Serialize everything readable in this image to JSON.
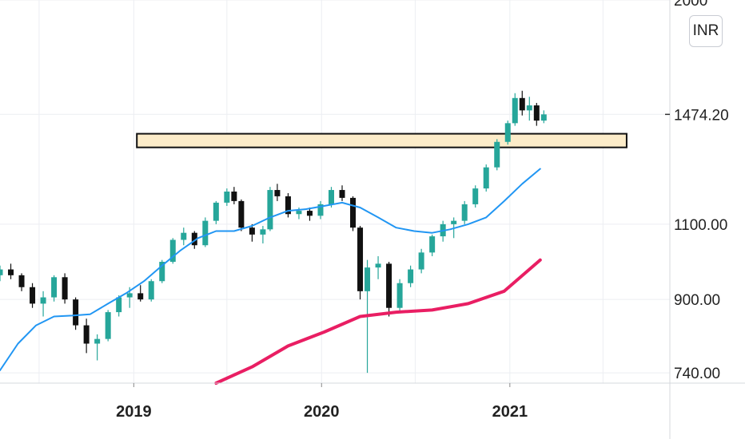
{
  "chart_data": {
    "type": "candlestick",
    "currency": "INR",
    "y_scale": "log",
    "ylim": [
      720,
      2000
    ],
    "y_ticks": [
      "740.00",
      "900.00",
      "1100.00",
      "2000"
    ],
    "last_price_label": "1474.20",
    "x_ticks": [
      "2019",
      "2020",
      "2021"
    ],
    "x_tick_values": [
      "2019-01-01",
      "2020-01-01",
      "2021-01-01"
    ],
    "xlim": [
      "2018-04-16",
      "2021-11-08"
    ],
    "grid": true,
    "colors": {
      "up": "#26a69a",
      "down": "#111111",
      "ma_short": "#2196f3",
      "ma_long": "#e91e63",
      "zone_fill": "#fcecc9",
      "zone_border": "#111111"
    },
    "resistance_zone": {
      "start": "2019-01-07",
      "end": "2021-08-16",
      "low": 1350,
      "high": 1400
    },
    "series": [
      {
        "type": "ma",
        "color": "#2196f3",
        "points": [
          [
            "2018-04-16",
            745
          ],
          [
            "2018-05-21",
            800
          ],
          [
            "2018-06-25",
            840
          ],
          [
            "2018-07-30",
            860
          ],
          [
            "2018-09-03",
            862
          ],
          [
            "2018-10-08",
            865
          ],
          [
            "2018-11-12",
            890
          ],
          [
            "2018-12-17",
            915
          ],
          [
            "2019-01-21",
            945
          ],
          [
            "2019-02-25",
            985
          ],
          [
            "2019-04-01",
            1025
          ],
          [
            "2019-05-06",
            1060
          ],
          [
            "2019-06-10",
            1080
          ],
          [
            "2019-07-15",
            1080
          ],
          [
            "2019-08-19",
            1095
          ],
          [
            "2019-09-23",
            1120
          ],
          [
            "2019-10-28",
            1140
          ],
          [
            "2019-12-02",
            1145
          ],
          [
            "2020-01-06",
            1155
          ],
          [
            "2020-02-10",
            1165
          ],
          [
            "2020-03-16",
            1150
          ],
          [
            "2020-04-20",
            1120
          ],
          [
            "2020-05-25",
            1090
          ],
          [
            "2020-06-29",
            1080
          ],
          [
            "2020-08-03",
            1075
          ],
          [
            "2020-09-07",
            1085
          ],
          [
            "2020-10-12",
            1100
          ],
          [
            "2020-11-16",
            1120
          ],
          [
            "2020-12-21",
            1170
          ],
          [
            "2021-01-25",
            1225
          ],
          [
            "2021-03-01",
            1275
          ]
        ]
      },
      {
        "type": "ma",
        "color": "#e91e63",
        "points": [
          [
            "2019-06-10",
            720
          ],
          [
            "2019-08-19",
            752
          ],
          [
            "2019-10-28",
            795
          ],
          [
            "2020-01-06",
            825
          ],
          [
            "2020-03-16",
            860
          ],
          [
            "2020-05-25",
            870
          ],
          [
            "2020-08-03",
            875
          ],
          [
            "2020-10-12",
            890
          ],
          [
            "2020-12-21",
            920
          ],
          [
            "2021-03-01",
            1000
          ]
        ]
      }
    ],
    "candles": [
      [
        "2018-04-16",
        960,
        985,
        945,
        975
      ],
      [
        "2018-05-07",
        975,
        990,
        950,
        960
      ],
      [
        "2018-05-28",
        960,
        965,
        920,
        930
      ],
      [
        "2018-06-18",
        930,
        940,
        880,
        890
      ],
      [
        "2018-07-09",
        890,
        920,
        860,
        905
      ],
      [
        "2018-07-30",
        905,
        960,
        895,
        955
      ],
      [
        "2018-08-20",
        955,
        965,
        890,
        900
      ],
      [
        "2018-09-10",
        900,
        905,
        830,
        840
      ],
      [
        "2018-10-01",
        840,
        855,
        780,
        800
      ],
      [
        "2018-10-22",
        800,
        820,
        765,
        810
      ],
      [
        "2018-11-12",
        810,
        875,
        805,
        870
      ],
      [
        "2018-12-03",
        870,
        910,
        860,
        905
      ],
      [
        "2018-12-24",
        905,
        930,
        880,
        915
      ],
      [
        "2019-01-14",
        915,
        935,
        895,
        900
      ],
      [
        "2019-02-04",
        900,
        950,
        895,
        945
      ],
      [
        "2019-02-25",
        945,
        1000,
        940,
        995
      ],
      [
        "2019-03-18",
        995,
        1060,
        990,
        1055
      ],
      [
        "2019-04-08",
        1055,
        1090,
        1040,
        1075
      ],
      [
        "2019-04-29",
        1075,
        1080,
        1030,
        1040
      ],
      [
        "2019-05-20",
        1040,
        1120,
        1035,
        1110
      ],
      [
        "2019-06-10",
        1110,
        1170,
        1100,
        1165
      ],
      [
        "2019-07-01",
        1165,
        1210,
        1155,
        1200
      ],
      [
        "2019-07-15",
        1200,
        1215,
        1160,
        1170
      ],
      [
        "2019-07-29",
        1170,
        1175,
        1080,
        1090
      ],
      [
        "2019-08-19",
        1090,
        1100,
        1050,
        1070
      ],
      [
        "2019-09-09",
        1070,
        1095,
        1045,
        1085
      ],
      [
        "2019-09-23",
        1085,
        1215,
        1080,
        1205
      ],
      [
        "2019-10-07",
        1205,
        1225,
        1170,
        1185
      ],
      [
        "2019-10-28",
        1185,
        1195,
        1120,
        1130
      ],
      [
        "2019-11-18",
        1130,
        1150,
        1115,
        1140
      ],
      [
        "2019-12-09",
        1140,
        1150,
        1110,
        1125
      ],
      [
        "2019-12-30",
        1125,
        1170,
        1115,
        1160
      ],
      [
        "2020-01-20",
        1160,
        1215,
        1150,
        1205
      ],
      [
        "2020-02-10",
        1205,
        1220,
        1170,
        1180
      ],
      [
        "2020-03-02",
        1180,
        1185,
        1080,
        1090
      ],
      [
        "2020-03-16",
        1090,
        1095,
        900,
        920
      ],
      [
        "2020-03-30",
        920,
        1000,
        740,
        980
      ],
      [
        "2020-04-20",
        980,
        1010,
        950,
        990
      ],
      [
        "2020-05-11",
        990,
        995,
        860,
        880
      ],
      [
        "2020-06-01",
        880,
        950,
        870,
        940
      ],
      [
        "2020-06-22",
        940,
        985,
        930,
        975
      ],
      [
        "2020-07-13",
        975,
        1030,
        965,
        1020
      ],
      [
        "2020-08-03",
        1020,
        1070,
        1010,
        1065
      ],
      [
        "2020-08-24",
        1065,
        1110,
        1050,
        1100
      ],
      [
        "2020-09-14",
        1100,
        1120,
        1060,
        1110
      ],
      [
        "2020-10-05",
        1110,
        1170,
        1100,
        1160
      ],
      [
        "2020-10-26",
        1160,
        1220,
        1150,
        1210
      ],
      [
        "2020-11-16",
        1210,
        1290,
        1200,
        1280
      ],
      [
        "2020-12-07",
        1280,
        1380,
        1270,
        1370
      ],
      [
        "2020-12-28",
        1370,
        1450,
        1360,
        1440
      ],
      [
        "2021-01-11",
        1440,
        1560,
        1430,
        1540
      ],
      [
        "2021-01-25",
        1540,
        1570,
        1470,
        1490
      ],
      [
        "2021-02-08",
        1490,
        1545,
        1450,
        1510
      ],
      [
        "2021-02-22",
        1510,
        1520,
        1430,
        1450
      ],
      [
        "2021-03-08",
        1450,
        1490,
        1440,
        1474.2
      ]
    ]
  }
}
